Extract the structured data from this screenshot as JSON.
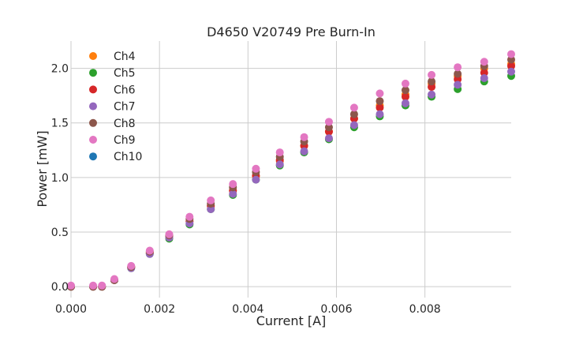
{
  "chart_data": {
    "type": "scatter",
    "title": "D4650 V20749 Pre Burn-In",
    "xlabel": "Current [A]",
    "ylabel": "Power [mW]",
    "xlim": [
      0.0,
      0.00995
    ],
    "ylim": [
      -0.1,
      2.25
    ],
    "xticks": [
      0.0,
      0.002,
      0.004,
      0.006,
      0.008
    ],
    "xtick_labels": [
      "0.000",
      "0.002",
      "0.004",
      "0.006",
      "0.008"
    ],
    "yticks": [
      0.0,
      0.5,
      1.0,
      1.5,
      2.0
    ],
    "ytick_labels": [
      "0.0",
      "0.5",
      "1.0",
      "1.5",
      "2.0"
    ],
    "grid": true,
    "legend_position": "top-left",
    "x": [
      0.0,
      0.0005,
      0.0007,
      0.00098,
      0.00136,
      0.00178,
      0.00222,
      0.00268,
      0.00316,
      0.00366,
      0.00418,
      0.00472,
      0.00527,
      0.00583,
      0.0064,
      0.00698,
      0.00756,
      0.00815,
      0.00874,
      0.00934,
      0.00995
    ],
    "series": [
      {
        "name": "Ch4",
        "color": "#ff7f0e",
        "values": [
          0.0,
          0.0,
          0.0,
          0.06,
          0.18,
          0.31,
          0.46,
          0.6,
          0.74,
          0.88,
          1.01,
          1.15,
          1.29,
          1.42,
          1.54,
          1.66,
          1.76,
          1.86,
          1.93,
          2.0,
          2.04
        ]
      },
      {
        "name": "Ch5",
        "color": "#2ca02c",
        "values": [
          0.0,
          0.0,
          0.0,
          0.06,
          0.17,
          0.3,
          0.44,
          0.57,
          0.71,
          0.84,
          0.98,
          1.11,
          1.23,
          1.35,
          1.46,
          1.56,
          1.66,
          1.74,
          1.81,
          1.88,
          1.93
        ]
      },
      {
        "name": "Ch6",
        "color": "#d62728",
        "values": [
          0.0,
          0.0,
          0.0,
          0.06,
          0.18,
          0.31,
          0.46,
          0.6,
          0.74,
          0.88,
          1.02,
          1.16,
          1.29,
          1.42,
          1.54,
          1.64,
          1.74,
          1.83,
          1.9,
          1.96,
          2.02
        ]
      },
      {
        "name": "Ch7",
        "color": "#9467bd",
        "values": [
          0.0,
          0.0,
          0.0,
          0.06,
          0.17,
          0.3,
          0.45,
          0.58,
          0.71,
          0.85,
          0.98,
          1.12,
          1.24,
          1.36,
          1.48,
          1.58,
          1.68,
          1.76,
          1.85,
          1.91,
          1.97
        ]
      },
      {
        "name": "Ch8",
        "color": "#8c564b",
        "values": [
          0.0,
          0.0,
          0.0,
          0.06,
          0.18,
          0.32,
          0.47,
          0.62,
          0.76,
          0.91,
          1.05,
          1.19,
          1.33,
          1.46,
          1.58,
          1.7,
          1.8,
          1.88,
          1.95,
          2.02,
          2.08
        ]
      },
      {
        "name": "Ch9",
        "color": "#e377c2",
        "values": [
          0.01,
          0.01,
          0.01,
          0.07,
          0.19,
          0.33,
          0.48,
          0.64,
          0.79,
          0.94,
          1.08,
          1.23,
          1.37,
          1.51,
          1.64,
          1.77,
          1.86,
          1.94,
          2.01,
          2.06,
          2.13
        ]
      },
      {
        "name": "Ch10",
        "color": "#1f77b4",
        "values": []
      }
    ]
  }
}
